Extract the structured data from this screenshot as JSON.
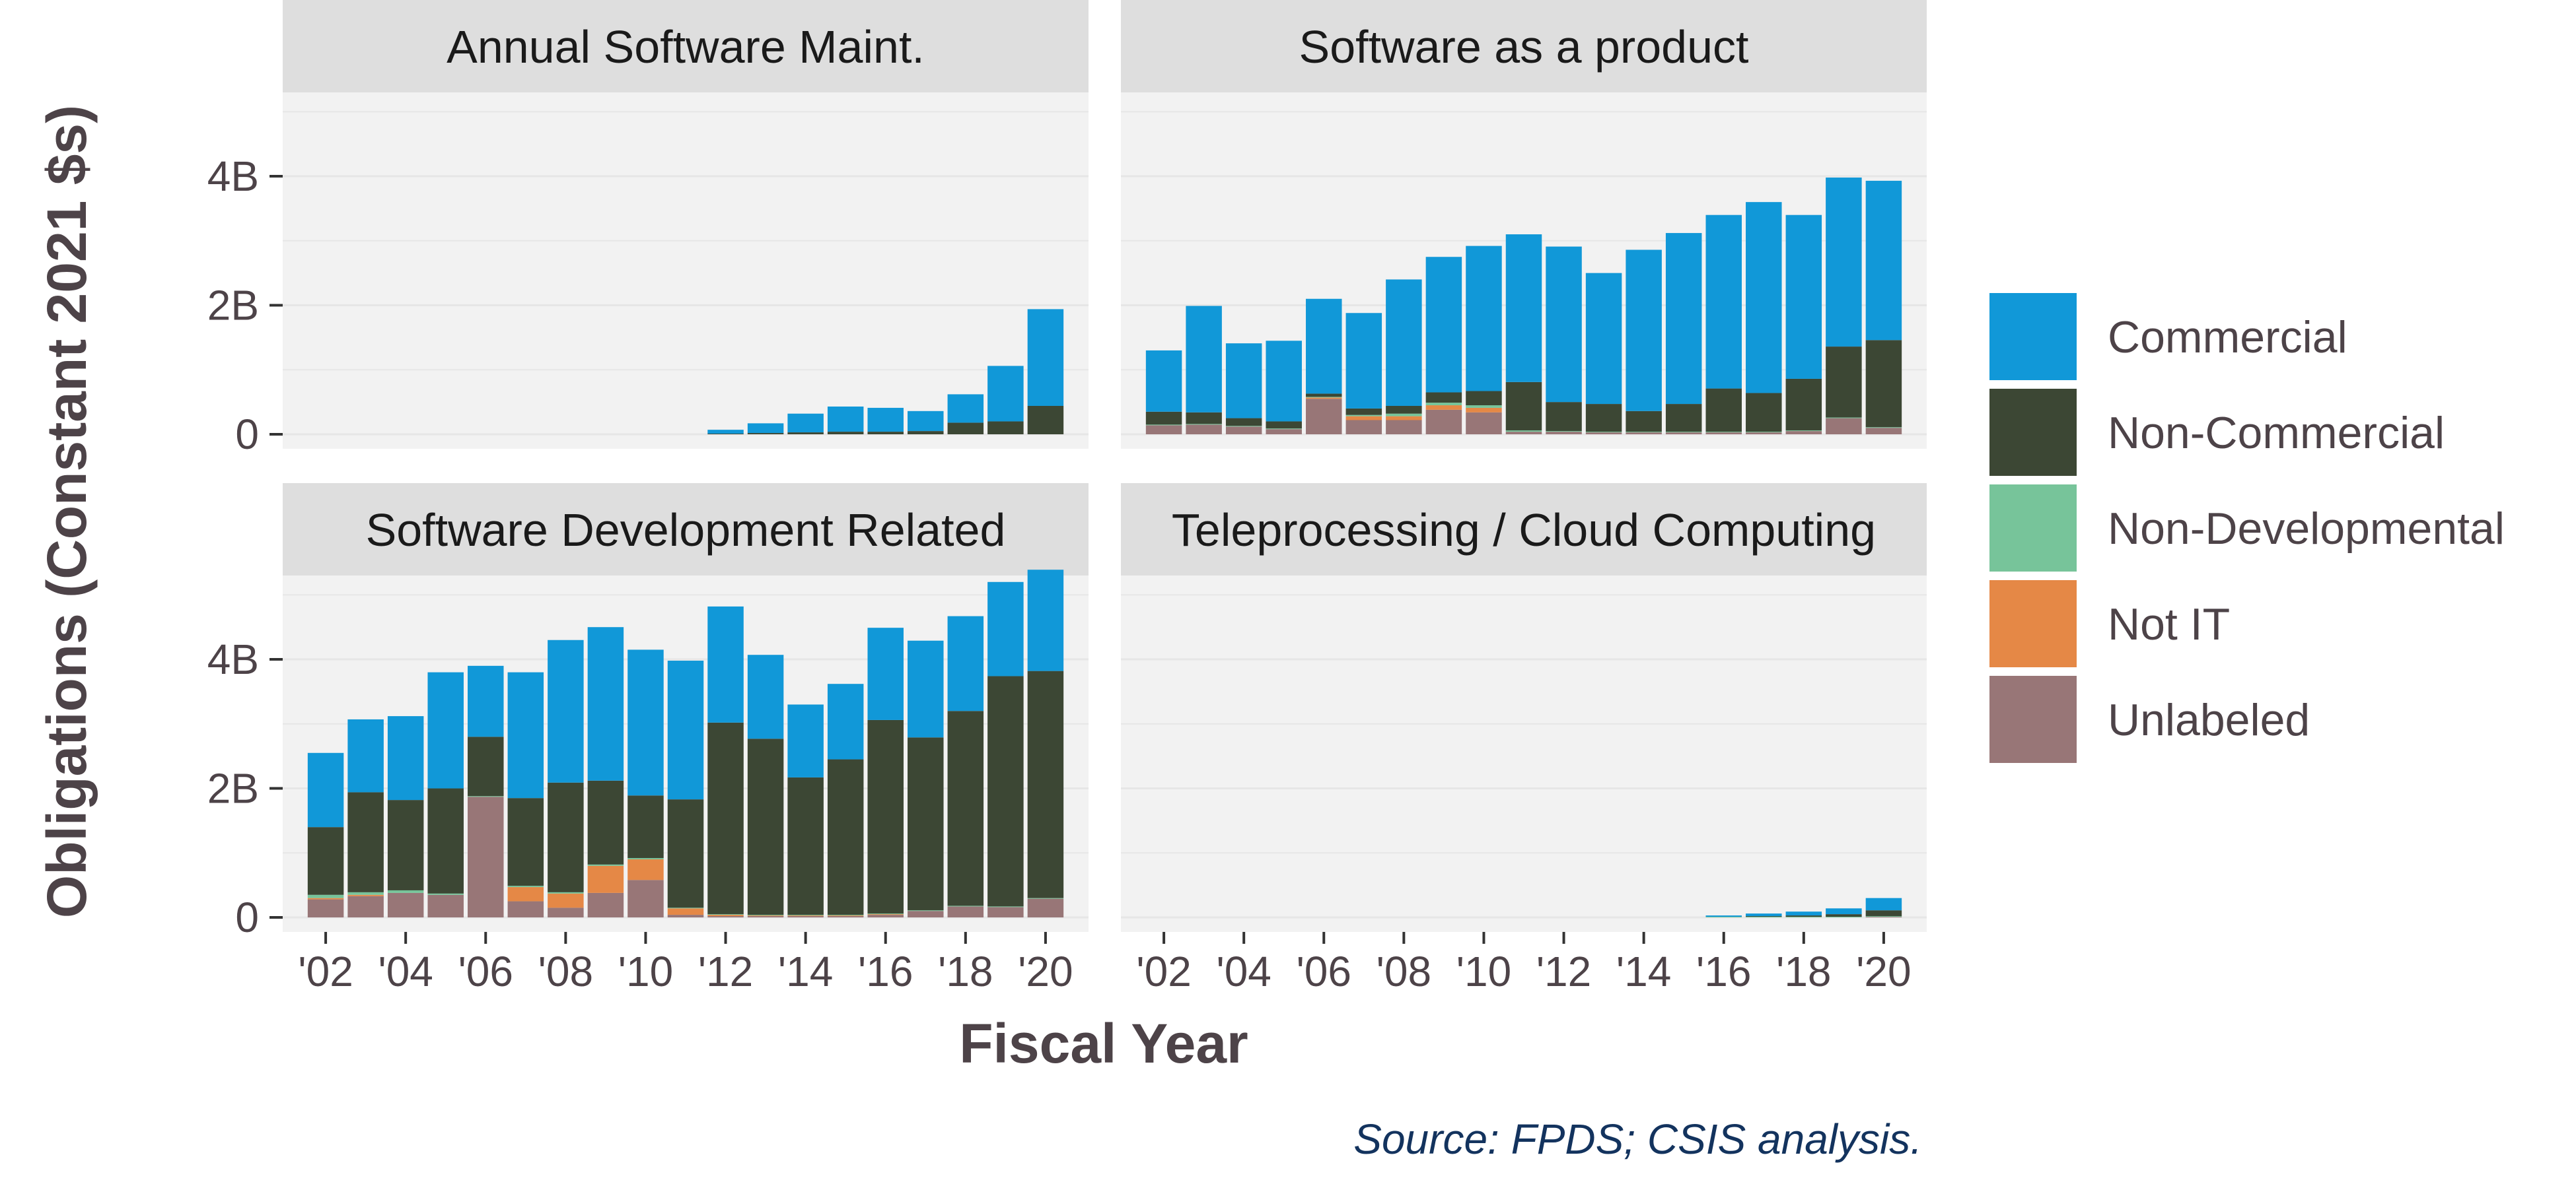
{
  "chart_data": {
    "type": "bar",
    "stacked": true,
    "facets": [
      "Annual Software Maint.",
      "Software as a product",
      "Software Development Related",
      "Teleprocessing / Cloud Computing"
    ],
    "x": [
      2002,
      2003,
      2004,
      2005,
      2006,
      2007,
      2008,
      2009,
      2010,
      2011,
      2012,
      2013,
      2014,
      2015,
      2016,
      2017,
      2018,
      2019,
      2020
    ],
    "x_tick_labels": [
      "'02",
      "'04",
      "'06",
      "'08",
      "'10",
      "'12",
      "'14",
      "'16",
      "'18",
      "'20"
    ],
    "x_tick_values": [
      2002,
      2004,
      2006,
      2008,
      2010,
      2012,
      2014,
      2016,
      2018,
      2020
    ],
    "y_tick_labels": [
      "0",
      "2B",
      "4B"
    ],
    "y_tick_values": [
      0,
      2,
      4
    ],
    "ylim": [
      0,
      5.3
    ],
    "y_unit": "billions",
    "xlabel": "Fiscal Year",
    "ylabel": "Obligations (Constant 2021 $s)",
    "legend_position": "right",
    "series_colors": {
      "Commercial": "#1198d8",
      "Non-Commercial": "#3c4734",
      "Non-Developmental": "#77c49a",
      "Not IT": "#e58846",
      "Unlabeled": "#987677"
    },
    "series": [
      {
        "name": "Unlabeled"
      },
      {
        "name": "Not IT"
      },
      {
        "name": "Non-Developmental"
      },
      {
        "name": "Non-Commercial"
      },
      {
        "name": "Commercial"
      }
    ],
    "legend_order": [
      "Commercial",
      "Non-Commercial",
      "Non-Developmental",
      "Not IT",
      "Unlabeled"
    ],
    "panels": [
      {
        "facet": "Annual Software Maint.",
        "values": {
          "Unlabeled": [
            0,
            0,
            0,
            0,
            0,
            0,
            0,
            0,
            0,
            0,
            0,
            0,
            0,
            0,
            0,
            0,
            0,
            0,
            0
          ],
          "Not IT": [
            0,
            0,
            0,
            0,
            0,
            0,
            0,
            0,
            0,
            0,
            0,
            0,
            0,
            0,
            0,
            0,
            0,
            0,
            0
          ],
          "Non-Developmental": [
            0,
            0,
            0,
            0,
            0,
            0,
            0,
            0,
            0,
            0,
            0,
            0,
            0,
            0,
            0,
            0,
            0,
            0,
            0
          ],
          "Non-Commercial": [
            0,
            0,
            0,
            0,
            0,
            0,
            0,
            0,
            0,
            0,
            0.01,
            0.02,
            0.03,
            0.04,
            0.04,
            0.05,
            0.18,
            0.2,
            0.44
          ],
          "Commercial": [
            0,
            0,
            0,
            0,
            0,
            0,
            0,
            0,
            0,
            0,
            0.06,
            0.15,
            0.29,
            0.39,
            0.37,
            0.31,
            0.44,
            0.86,
            1.5
          ]
        }
      },
      {
        "facet": "Software as a product",
        "values": {
          "Unlabeled": [
            0.14,
            0.15,
            0.12,
            0.08,
            0.55,
            0.22,
            0.22,
            0.38,
            0.34,
            0.04,
            0.04,
            0.03,
            0.03,
            0.03,
            0.03,
            0.03,
            0.05,
            0.25,
            0.1
          ],
          "Not IT": [
            0,
            0,
            0,
            0,
            0.02,
            0.06,
            0.06,
            0.07,
            0.07,
            0,
            0,
            0,
            0,
            0,
            0,
            0,
            0,
            0,
            0
          ],
          "Non-Developmental": [
            0.01,
            0.01,
            0.01,
            0.01,
            0.01,
            0.02,
            0.04,
            0.04,
            0.04,
            0.02,
            0.01,
            0.01,
            0.01,
            0.01,
            0.01,
            0.01,
            0.01,
            0.01,
            0.01
          ],
          "Non-Commercial": [
            0.2,
            0.18,
            0.12,
            0.11,
            0.05,
            0.1,
            0.12,
            0.16,
            0.22,
            0.75,
            0.45,
            0.43,
            0.32,
            0.43,
            0.67,
            0.6,
            0.8,
            1.1,
            1.35
          ],
          "Commercial": [
            0.95,
            1.65,
            1.16,
            1.25,
            1.47,
            1.48,
            1.96,
            2.1,
            2.25,
            2.29,
            2.41,
            2.03,
            2.5,
            2.65,
            2.69,
            2.96,
            2.54,
            2.62,
            2.47
          ]
        }
      },
      {
        "facet": "Software Development Related",
        "values": {
          "Unlabeled": [
            0.28,
            0.33,
            0.38,
            0.35,
            1.87,
            0.25,
            0.15,
            0.38,
            0.58,
            0.04,
            0.02,
            0.02,
            0.02,
            0.02,
            0.04,
            0.1,
            0.17,
            0.16,
            0.29
          ],
          "Not IT": [
            0.02,
            0.02,
            0,
            0,
            0,
            0.22,
            0.22,
            0.42,
            0.32,
            0.1,
            0.02,
            0.01,
            0.01,
            0.01,
            0.01,
            0,
            0,
            0,
            0
          ],
          "Non-Developmental": [
            0.05,
            0.04,
            0.04,
            0.02,
            0.01,
            0.02,
            0.02,
            0.02,
            0.02,
            0.01,
            0.01,
            0.01,
            0.01,
            0.01,
            0.01,
            0.01,
            0.01,
            0.01,
            0.01
          ],
          "Non-Commercial": [
            1.05,
            1.55,
            1.4,
            1.63,
            0.92,
            1.36,
            1.7,
            1.3,
            0.97,
            1.68,
            2.97,
            2.73,
            2.13,
            2.41,
            3.0,
            2.68,
            3.02,
            3.57,
            3.52
          ],
          "Commercial": [
            1.15,
            1.13,
            1.3,
            1.8,
            1.1,
            1.95,
            2.21,
            2.38,
            2.26,
            2.15,
            1.8,
            1.3,
            1.13,
            1.17,
            1.43,
            1.5,
            1.47,
            1.46,
            1.57
          ]
        }
      },
      {
        "facet": "Teleprocessing / Cloud Computing",
        "values": {
          "Unlabeled": [
            0,
            0,
            0,
            0,
            0,
            0,
            0,
            0,
            0,
            0,
            0,
            0,
            0,
            0,
            0,
            0,
            0,
            0,
            0.01
          ],
          "Not IT": [
            0,
            0,
            0,
            0,
            0,
            0,
            0,
            0,
            0,
            0,
            0,
            0,
            0,
            0,
            0,
            0,
            0,
            0,
            0
          ],
          "Non-Developmental": [
            0,
            0,
            0,
            0,
            0,
            0,
            0,
            0,
            0,
            0,
            0,
            0,
            0,
            0,
            0.01,
            0.01,
            0.01,
            0.01,
            0.01
          ],
          "Non-Commercial": [
            0,
            0,
            0,
            0,
            0,
            0,
            0,
            0,
            0,
            0,
            0,
            0,
            0,
            0,
            0,
            0.01,
            0.02,
            0.04,
            0.09
          ],
          "Commercial": [
            0,
            0,
            0,
            0,
            0,
            0,
            0,
            0,
            0,
            0,
            0,
            0,
            0,
            0,
            0.02,
            0.04,
            0.06,
            0.09,
            0.19
          ]
        }
      }
    ],
    "caption": "Source: FPDS; CSIS analysis."
  }
}
